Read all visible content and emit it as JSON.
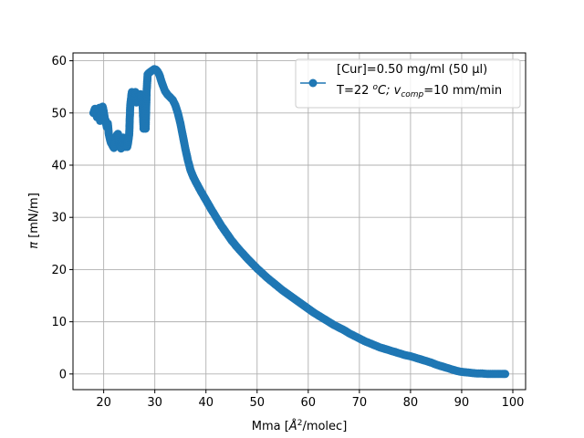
{
  "chart_data": {
    "type": "scatter",
    "xlabel_main": "Mma [",
    "xlabel_sym": "Å",
    "xlabel_sup": "2",
    "xlabel_end": "/molec]",
    "ylabel_sym": "π",
    "ylabel_rest": " [mN/m]",
    "xlim": [
      14.0,
      102.5
    ],
    "ylim": [
      -3.0,
      61.5
    ],
    "xticks": [
      20,
      30,
      40,
      50,
      60,
      70,
      80,
      90,
      100
    ],
    "yticks": [
      0,
      10,
      20,
      30,
      40,
      50,
      60
    ],
    "grid": true,
    "legend_position": "top-right",
    "colors": {
      "series": "#1f77b4"
    },
    "series": [
      {
        "name_line1": "[Cur]=0.50 mg/ml (50 μl)",
        "name_line2_parts": [
          "T=22 ",
          "o",
          "C; ",
          "v",
          "comp",
          "=10 mm/min"
        ],
        "points": [
          [
            18.0,
            50.0
          ],
          [
            18.3,
            50.8
          ],
          [
            18.5,
            49.8
          ],
          [
            18.7,
            49.2
          ],
          [
            19.0,
            50.7
          ],
          [
            19.2,
            51.0
          ],
          [
            19.3,
            48.5
          ],
          [
            19.6,
            50.0
          ],
          [
            19.8,
            51.2
          ],
          [
            20.0,
            50.3
          ],
          [
            20.2,
            49.0
          ],
          [
            20.4,
            48.5
          ],
          [
            20.6,
            47.3
          ],
          [
            20.8,
            48.0
          ],
          [
            21.0,
            46.0
          ],
          [
            21.2,
            45.0
          ],
          [
            21.4,
            44.3
          ],
          [
            21.6,
            44.0
          ],
          [
            21.8,
            43.6
          ],
          [
            22.0,
            43.3
          ],
          [
            22.2,
            43.8
          ],
          [
            22.4,
            45.2
          ],
          [
            22.6,
            45.8
          ],
          [
            22.8,
            46.0
          ],
          [
            23.0,
            44.8
          ],
          [
            23.2,
            43.8
          ],
          [
            23.4,
            43.2
          ],
          [
            23.6,
            44.3
          ],
          [
            23.8,
            45.3
          ],
          [
            24.0,
            44.0
          ],
          [
            24.2,
            43.5
          ],
          [
            24.4,
            45.0
          ],
          [
            24.6,
            43.5
          ],
          [
            24.8,
            44.5
          ],
          [
            25.0,
            46.0
          ],
          [
            25.1,
            49.0
          ],
          [
            25.2,
            51.5
          ],
          [
            25.4,
            53.2
          ],
          [
            25.5,
            54.0
          ],
          [
            25.8,
            53.5
          ],
          [
            26.0,
            53.0
          ],
          [
            26.2,
            54.0
          ],
          [
            26.4,
            52.0
          ],
          [
            26.6,
            53.0
          ],
          [
            26.8,
            52.5
          ],
          [
            27.0,
            53.2
          ],
          [
            27.2,
            53.6
          ],
          [
            27.4,
            52.8
          ],
          [
            27.6,
            51.8
          ],
          [
            27.8,
            47.0
          ],
          [
            28.0,
            48.0
          ],
          [
            28.2,
            47.0
          ],
          [
            28.4,
            54.2
          ],
          [
            28.6,
            57.4
          ],
          [
            29.0,
            57.8
          ],
          [
            29.3,
            58.0
          ],
          [
            29.6,
            58.2
          ],
          [
            29.9,
            58.4
          ],
          [
            30.2,
            58.3
          ],
          [
            30.5,
            58.0
          ],
          [
            30.8,
            57.5
          ],
          [
            31.0,
            57.0
          ],
          [
            31.3,
            56.0
          ],
          [
            31.6,
            55.2
          ],
          [
            32.0,
            54.2
          ],
          [
            32.5,
            53.5
          ],
          [
            33.0,
            53.0
          ],
          [
            33.5,
            52.5
          ],
          [
            34.0,
            51.5
          ],
          [
            34.5,
            50.0
          ],
          [
            35.0,
            48.0
          ],
          [
            35.5,
            45.5
          ],
          [
            36.0,
            43.0
          ],
          [
            36.5,
            40.8
          ],
          [
            37.0,
            39.0
          ],
          [
            37.5,
            37.8
          ],
          [
            38.0,
            36.8
          ],
          [
            39.0,
            35.0
          ],
          [
            40.0,
            33.3
          ],
          [
            41.0,
            31.6
          ],
          [
            42.0,
            30.0
          ],
          [
            43.0,
            28.4
          ],
          [
            44.0,
            27.0
          ],
          [
            45.0,
            25.6
          ],
          [
            46.0,
            24.4
          ],
          [
            47.0,
            23.3
          ],
          [
            48.0,
            22.2
          ],
          [
            49.0,
            21.2
          ],
          [
            50.0,
            20.2
          ],
          [
            51.0,
            19.3
          ],
          [
            52.0,
            18.4
          ],
          [
            53.0,
            17.6
          ],
          [
            54.0,
            16.8
          ],
          [
            55.0,
            16.0
          ],
          [
            56.0,
            15.3
          ],
          [
            57.0,
            14.6
          ],
          [
            58.0,
            13.9
          ],
          [
            59.0,
            13.2
          ],
          [
            60.0,
            12.5
          ],
          [
            61.0,
            11.8
          ],
          [
            62.0,
            11.2
          ],
          [
            63.0,
            10.6
          ],
          [
            64.0,
            10.0
          ],
          [
            65.0,
            9.4
          ],
          [
            66.0,
            8.9
          ],
          [
            67.0,
            8.4
          ],
          [
            68.0,
            7.8
          ],
          [
            69.0,
            7.3
          ],
          [
            70.0,
            6.8
          ],
          [
            71.0,
            6.3
          ],
          [
            72.0,
            5.9
          ],
          [
            73.0,
            5.5
          ],
          [
            74.0,
            5.1
          ],
          [
            75.0,
            4.8
          ],
          [
            76.0,
            4.5
          ],
          [
            77.0,
            4.2
          ],
          [
            78.0,
            3.9
          ],
          [
            79.0,
            3.6
          ],
          [
            80.0,
            3.4
          ],
          [
            81.0,
            3.1
          ],
          [
            82.0,
            2.8
          ],
          [
            83.0,
            2.5
          ],
          [
            84.0,
            2.2
          ],
          [
            85.0,
            1.8
          ],
          [
            86.0,
            1.5
          ],
          [
            87.0,
            1.2
          ],
          [
            88.0,
            0.9
          ],
          [
            89.0,
            0.6
          ],
          [
            90.0,
            0.4
          ],
          [
            91.0,
            0.3
          ],
          [
            92.0,
            0.2
          ],
          [
            93.0,
            0.1
          ],
          [
            94.0,
            0.1
          ],
          [
            95.0,
            0.0
          ],
          [
            96.0,
            0.0
          ],
          [
            97.0,
            0.0
          ],
          [
            98.0,
            0.0
          ],
          [
            98.5,
            0.0
          ]
        ]
      }
    ]
  }
}
